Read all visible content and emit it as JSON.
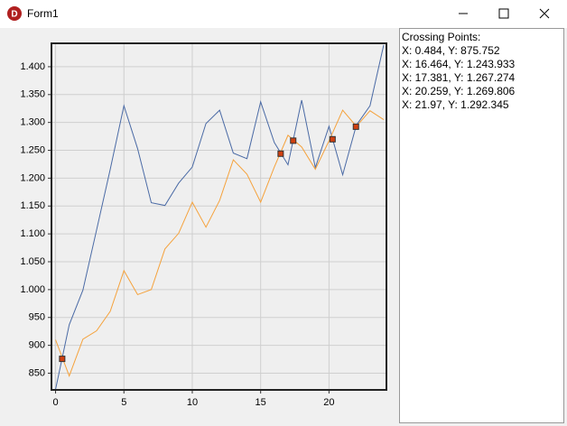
{
  "window": {
    "title": "Form1"
  },
  "chart_data": {
    "type": "line",
    "x": [
      0,
      1,
      2,
      3,
      4,
      5,
      6,
      7,
      8,
      9,
      10,
      11,
      12,
      13,
      14,
      15,
      16,
      17,
      18,
      19,
      20,
      21,
      22,
      23,
      24
    ],
    "series": [
      {
        "color": "#4a6aa5",
        "values": [
          821,
          937,
          999,
          1107,
          1216,
          1330,
          1253,
          1156,
          1151,
          1191,
          1220,
          1298,
          1322,
          1245,
          1235,
          1337,
          1264,
          1224,
          1340,
          1219,
          1293,
          1206,
          1295,
          1330,
          1439
        ]
      },
      {
        "color": "#f5a23c",
        "values": [
          910,
          845,
          911,
          926,
          961,
          1034,
          991,
          1000,
          1073,
          1101,
          1157,
          1112,
          1160,
          1233,
          1207,
          1157,
          1220,
          1277,
          1256,
          1216,
          1267,
          1322,
          1293,
          1321,
          1305
        ]
      }
    ],
    "markers": {
      "color": "#d04010",
      "x": [
        0.484,
        16.464,
        17.381,
        20.259,
        21.97
      ],
      "y": [
        875.752,
        1243.933,
        1267.274,
        1269.806,
        1292.345
      ]
    },
    "xlim": [
      -0.3,
      24.2
    ],
    "xticks": [
      0,
      5,
      10,
      15,
      20
    ],
    "ylim": [
      820,
      1442
    ],
    "yticks": [
      850,
      900,
      950,
      {
        "value": 1000,
        "label": "1.000"
      },
      {
        "value": 1050,
        "label": "1.050"
      },
      {
        "value": 1100,
        "label": "1.100"
      },
      {
        "value": 1150,
        "label": "1.150"
      },
      {
        "value": 1200,
        "label": "1.200"
      },
      {
        "value": 1250,
        "label": "1.250"
      },
      {
        "value": 1300,
        "label": "1.300"
      },
      {
        "value": 1350,
        "label": "1.350"
      },
      {
        "value": 1400,
        "label": "1.400"
      }
    ],
    "grid": true
  },
  "panel": {
    "heading": "Crossing Points:",
    "lines": [
      "X: 0.484, Y: 875.752",
      "X: 16.464, Y: 1.243.933",
      "X: 17.381, Y: 1.267.274",
      "X: 20.259, Y: 1.269.806",
      "X: 21.97, Y: 1.292.345"
    ]
  }
}
